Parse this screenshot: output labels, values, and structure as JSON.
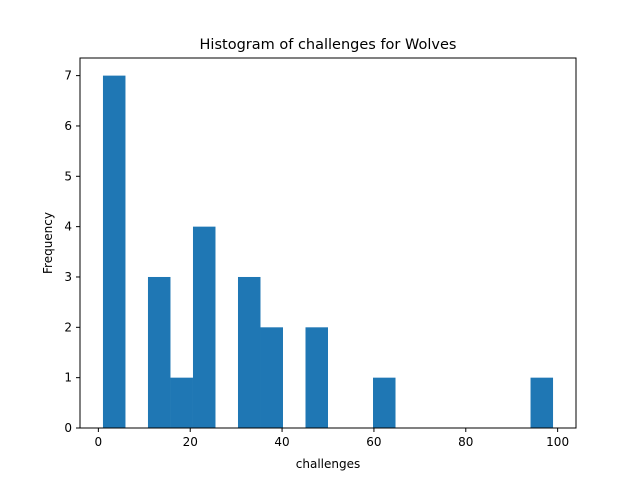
{
  "chart_data": {
    "type": "bar",
    "title": "Histogram of challenges for Wolves",
    "xlabel": "challenges",
    "ylabel": "Frequency",
    "xlim": [
      -4.0,
      104.0
    ],
    "ylim": [
      0,
      7.35
    ],
    "xticks": [
      0,
      20,
      40,
      60,
      80,
      100
    ],
    "yticks": [
      0,
      1,
      2,
      3,
      4,
      5,
      6,
      7
    ],
    "bar_color": "#1f77b4",
    "grid": false,
    "legend": "none",
    "bins": [
      {
        "x0": 1.0,
        "x1": 5.9,
        "count": 7
      },
      {
        "x0": 5.9,
        "x1": 10.8,
        "count": 0
      },
      {
        "x0": 10.8,
        "x1": 15.7,
        "count": 3
      },
      {
        "x0": 15.7,
        "x1": 20.6,
        "count": 1
      },
      {
        "x0": 20.6,
        "x1": 25.5,
        "count": 4
      },
      {
        "x0": 25.5,
        "x1": 30.4,
        "count": 0
      },
      {
        "x0": 30.4,
        "x1": 35.3,
        "count": 3
      },
      {
        "x0": 35.3,
        "x1": 40.2,
        "count": 2
      },
      {
        "x0": 40.2,
        "x1": 45.1,
        "count": 0
      },
      {
        "x0": 45.1,
        "x1": 50.0,
        "count": 2
      },
      {
        "x0": 50.0,
        "x1": 54.9,
        "count": 0
      },
      {
        "x0": 54.9,
        "x1": 59.8,
        "count": 0
      },
      {
        "x0": 59.8,
        "x1": 64.7,
        "count": 1
      },
      {
        "x0": 64.7,
        "x1": 69.6,
        "count": 0
      },
      {
        "x0": 69.6,
        "x1": 74.5,
        "count": 0
      },
      {
        "x0": 74.5,
        "x1": 79.4,
        "count": 0
      },
      {
        "x0": 79.4,
        "x1": 84.3,
        "count": 0
      },
      {
        "x0": 84.3,
        "x1": 89.2,
        "count": 0
      },
      {
        "x0": 89.2,
        "x1": 94.1,
        "count": 0
      },
      {
        "x0": 94.1,
        "x1": 99.0,
        "count": 1
      }
    ]
  }
}
